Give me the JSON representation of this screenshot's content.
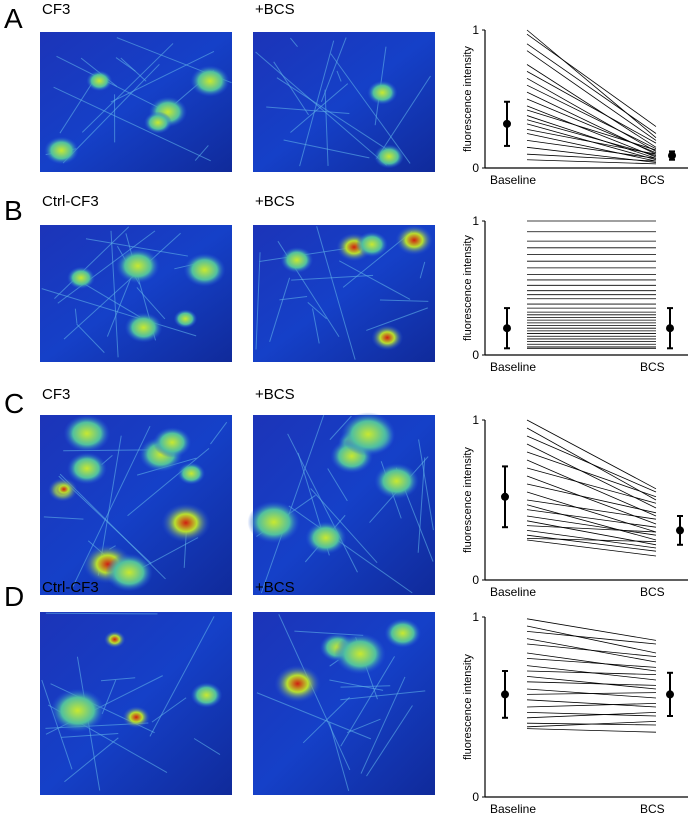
{
  "panels": [
    {
      "letter": "A",
      "labels": [
        "CF3",
        "+BCS"
      ]
    },
    {
      "letter": "B",
      "labels": [
        "Ctrl-CF3",
        "+BCS"
      ]
    },
    {
      "letter": "C",
      "labels": [
        "CF3",
        "+BCS"
      ]
    },
    {
      "letter": "D",
      "labels": [
        "Ctrl-CF3",
        "+BCS"
      ]
    }
  ],
  "chart_data": [
    {
      "type": "slope",
      "ylabel": "fluorescence intensity",
      "categories": [
        "Baseline",
        "BCS"
      ],
      "ylim": [
        0,
        1
      ],
      "yticks": [
        0,
        1
      ],
      "lines": [
        [
          1.0,
          0.22
        ],
        [
          0.97,
          0.3
        ],
        [
          0.9,
          0.25
        ],
        [
          0.85,
          0.2
        ],
        [
          0.75,
          0.15
        ],
        [
          0.7,
          0.18
        ],
        [
          0.65,
          0.12
        ],
        [
          0.6,
          0.14
        ],
        [
          0.55,
          0.1
        ],
        [
          0.5,
          0.11
        ],
        [
          0.45,
          0.08
        ],
        [
          0.42,
          0.13
        ],
        [
          0.38,
          0.07
        ],
        [
          0.35,
          0.09
        ],
        [
          0.32,
          0.06
        ],
        [
          0.28,
          0.1
        ],
        [
          0.25,
          0.05
        ],
        [
          0.2,
          0.07
        ],
        [
          0.15,
          0.04
        ],
        [
          0.1,
          0.05
        ],
        [
          0.06,
          0.03
        ]
      ],
      "means": [
        0.32,
        0.09
      ],
      "errors": [
        0.16,
        0.03
      ]
    },
    {
      "type": "slope",
      "ylabel": "fluorescence intensity",
      "categories": [
        "Baseline",
        "BCS"
      ],
      "ylim": [
        0,
        1
      ],
      "yticks": [
        0,
        1
      ],
      "lines": [
        [
          1.0,
          1.0
        ],
        [
          0.92,
          0.92
        ],
        [
          0.85,
          0.85
        ],
        [
          0.8,
          0.8
        ],
        [
          0.75,
          0.75
        ],
        [
          0.7,
          0.7
        ],
        [
          0.65,
          0.65
        ],
        [
          0.6,
          0.6
        ],
        [
          0.56,
          0.56
        ],
        [
          0.52,
          0.52
        ],
        [
          0.48,
          0.48
        ],
        [
          0.45,
          0.45
        ],
        [
          0.42,
          0.42
        ],
        [
          0.38,
          0.38
        ],
        [
          0.35,
          0.35
        ],
        [
          0.32,
          0.32
        ],
        [
          0.3,
          0.3
        ],
        [
          0.28,
          0.28
        ],
        [
          0.26,
          0.26
        ],
        [
          0.24,
          0.24
        ],
        [
          0.22,
          0.22
        ],
        [
          0.2,
          0.2
        ],
        [
          0.18,
          0.18
        ],
        [
          0.16,
          0.16
        ],
        [
          0.14,
          0.14
        ],
        [
          0.12,
          0.12
        ],
        [
          0.1,
          0.1
        ],
        [
          0.08,
          0.08
        ],
        [
          0.06,
          0.06
        ],
        [
          0.05,
          0.05
        ]
      ],
      "means": [
        0.2,
        0.2
      ],
      "errors": [
        0.15,
        0.15
      ]
    },
    {
      "type": "slope",
      "ylabel": "fluorescence intensity",
      "categories": [
        "Baseline",
        "BCS"
      ],
      "ylim": [
        0,
        1
      ],
      "yticks": [
        0,
        1
      ],
      "lines": [
        [
          1.0,
          0.57
        ],
        [
          0.95,
          0.5
        ],
        [
          0.9,
          0.55
        ],
        [
          0.85,
          0.45
        ],
        [
          0.8,
          0.52
        ],
        [
          0.75,
          0.4
        ],
        [
          0.7,
          0.48
        ],
        [
          0.65,
          0.35
        ],
        [
          0.6,
          0.42
        ],
        [
          0.55,
          0.3
        ],
        [
          0.5,
          0.38
        ],
        [
          0.47,
          0.25
        ],
        [
          0.44,
          0.33
        ],
        [
          0.4,
          0.28
        ],
        [
          0.37,
          0.22
        ],
        [
          0.34,
          0.3
        ],
        [
          0.31,
          0.2
        ],
        [
          0.28,
          0.18
        ],
        [
          0.26,
          0.24
        ],
        [
          0.25,
          0.15
        ]
      ],
      "means": [
        0.52,
        0.31
      ],
      "errors": [
        0.19,
        0.09
      ]
    },
    {
      "type": "slope",
      "ylabel": "fluorescence intensity",
      "categories": [
        "Baseline",
        "BCS"
      ],
      "ylim": [
        0,
        1
      ],
      "yticks": [
        0,
        1
      ],
      "lines": [
        [
          0.99,
          0.87
        ],
        [
          0.95,
          0.8
        ],
        [
          0.92,
          0.85
        ],
        [
          0.88,
          0.75
        ],
        [
          0.85,
          0.78
        ],
        [
          0.8,
          0.7
        ],
        [
          0.77,
          0.72
        ],
        [
          0.73,
          0.65
        ],
        [
          0.7,
          0.68
        ],
        [
          0.67,
          0.6
        ],
        [
          0.64,
          0.62
        ],
        [
          0.6,
          0.55
        ],
        [
          0.57,
          0.58
        ],
        [
          0.54,
          0.5
        ],
        [
          0.5,
          0.52
        ],
        [
          0.47,
          0.45
        ],
        [
          0.44,
          0.47
        ],
        [
          0.41,
          0.4
        ],
        [
          0.39,
          0.42
        ],
        [
          0.38,
          0.36
        ]
      ],
      "means": [
        0.57,
        0.57
      ],
      "errors": [
        0.13,
        0.12
      ]
    }
  ]
}
